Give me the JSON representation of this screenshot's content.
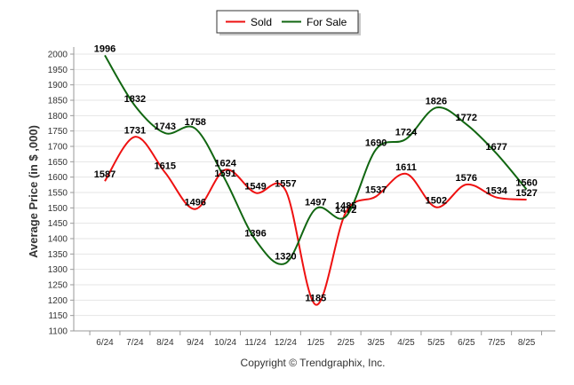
{
  "chart_data": {
    "type": "line",
    "categories": [
      "6/24",
      "7/24",
      "8/24",
      "9/24",
      "10/24",
      "11/24",
      "12/24",
      "1/25",
      "2/25",
      "3/25",
      "4/25",
      "5/25",
      "6/25",
      "7/25",
      "8/25"
    ],
    "series": [
      {
        "name": "Sold",
        "color": "#ee1111",
        "values": [
          1587,
          1731,
          1615,
          1496,
          1624,
          1549,
          1557,
          1185,
          1485,
          1537,
          1611,
          1502,
          1576,
          1534,
          1527
        ]
      },
      {
        "name": "For Sale",
        "color": "#116611",
        "values": [
          1996,
          1832,
          1743,
          1758,
          1591,
          1396,
          1320,
          1497,
          1472,
          1690,
          1724,
          1826,
          1772,
          1677,
          1560
        ]
      }
    ],
    "ylabel": "Average Price (in $ ,000)",
    "xlabel": "",
    "ylim": [
      1100,
      2000
    ],
    "yticks": [
      1100,
      1150,
      1200,
      1250,
      1300,
      1350,
      1400,
      1450,
      1500,
      1550,
      1600,
      1650,
      1700,
      1750,
      1800,
      1850,
      1900,
      1950,
      2000
    ],
    "grid": true,
    "legend_position": "top-center",
    "credit": "Copyright © Trendgraphix, Inc."
  }
}
